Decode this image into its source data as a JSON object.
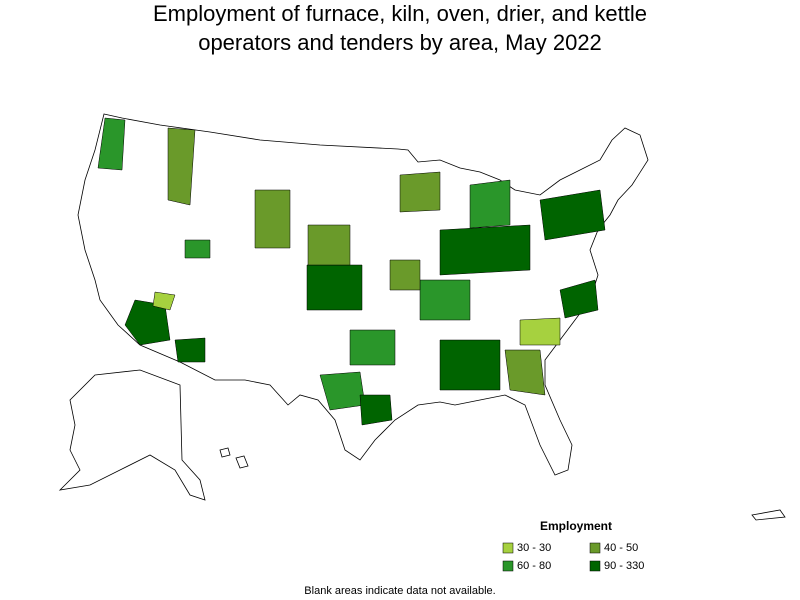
{
  "title": "Employment of furnace, kiln, oven, drier, and kettle operators and tenders by area, May 2022",
  "title_lines": [
    "Employment of furnace, kiln, oven, drier, and kettle",
    "operators and tenders by area, May 2022"
  ],
  "legend": {
    "title": "Employment",
    "entries": [
      {
        "label": "30 - 30",
        "color": "#a6d13f"
      },
      {
        "label": "40 - 50",
        "color": "#6a9a2a"
      },
      {
        "label": "60 - 80",
        "color": "#2a962a"
      },
      {
        "label": "90 - 330",
        "color": "#006400"
      }
    ]
  },
  "footnote": "Blank areas indicate data not available."
}
